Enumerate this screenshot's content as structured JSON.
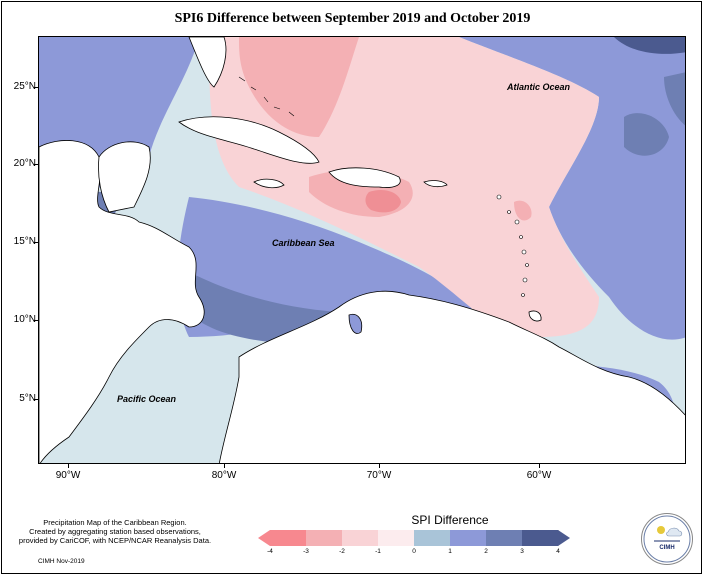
{
  "title": "SPI6 Difference between September 2019 and October 2019",
  "axes": {
    "lat_labels": [
      "25°N",
      "20°N",
      "15°N",
      "10°N",
      "5°N"
    ],
    "lon_labels": [
      "90°W",
      "80°W",
      "70°W",
      "60°W"
    ]
  },
  "ocean_labels": {
    "atlantic": "Atlantic Ocean",
    "caribbean": "Caribbean Sea",
    "pacific": "Pacific Ocean"
  },
  "credits": {
    "line1": "Precipitation Map of the Caribbean Region.",
    "line2": "Created by aggregating station based observations,",
    "line3": "provided by CariCOF, with NCEP/NCAR Reanalysis Data.",
    "date": "CIMH Nov-2019"
  },
  "legend": {
    "title": "SPI Difference",
    "ticks": [
      "-4",
      "-3",
      "-2",
      "-1",
      "0",
      "1",
      "2",
      "3",
      "4"
    ],
    "colors": [
      "#f7888f",
      "#f4b0b4",
      "#f9d3d6",
      "#fcecee",
      "#d6e6ec",
      "#a9c4d8",
      "#8d99d8",
      "#6e7fb3",
      "#4b5a8f"
    ]
  },
  "logo": {
    "text": "CIMH",
    "icon": "cimh-logo-icon"
  },
  "palette": {
    "land": "#ffffff",
    "neutral": "#d6e6ec",
    "pink_light": "#f9d3d6",
    "pink_mid": "#f4b0b4",
    "pink_strong": "#ef8f95",
    "blue_light": "#a9c4d8",
    "blue_mid": "#8d99d8",
    "blue_dark": "#6e7fb3",
    "blue_darkest": "#4b5a8f"
  }
}
